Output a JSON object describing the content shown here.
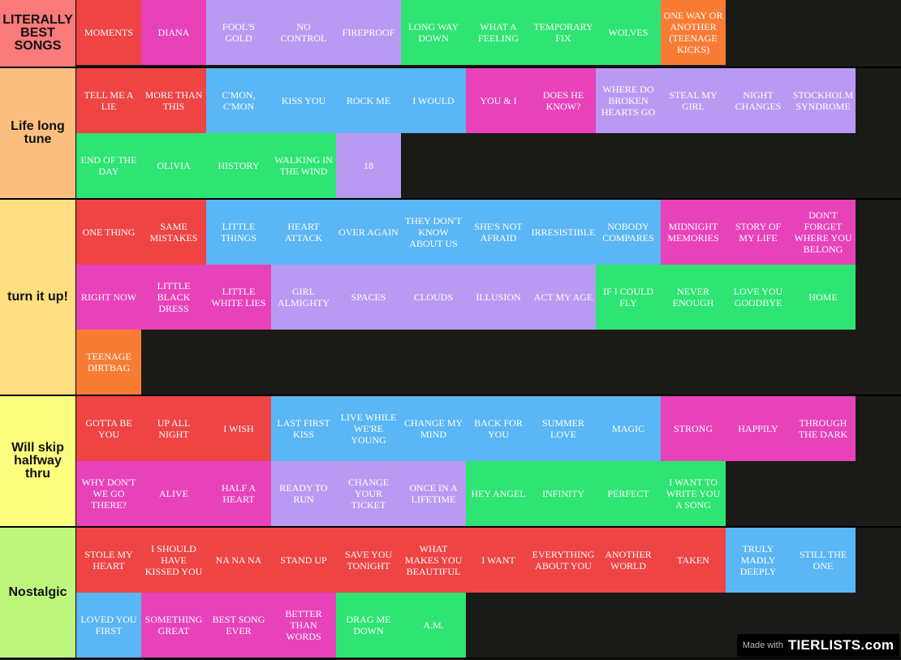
{
  "colors": {
    "red": "#ef4444",
    "pink": "#e842ba",
    "lavender": "#b99af2",
    "green": "#2ee472",
    "orange": "#f97c35",
    "blue": "#5ab6f4"
  },
  "tiers": [
    {
      "label": "LITERALLY BEST SONGS",
      "color": "#fb7a7a",
      "height": 82,
      "items": [
        {
          "text": "MOMENTS",
          "color": "red"
        },
        {
          "text": "DIANA",
          "color": "pink"
        },
        {
          "text": "FOOL'S GOLD",
          "color": "lavender"
        },
        {
          "text": "NO CONTROL",
          "color": "lavender"
        },
        {
          "text": "FIREPROOF",
          "color": "lavender"
        },
        {
          "text": "LONG WAY DOWN",
          "color": "green"
        },
        {
          "text": "WHAT A FEELING",
          "color": "green"
        },
        {
          "text": "TEMPORARY FIX",
          "color": "green"
        },
        {
          "text": "WOLVES",
          "color": "green"
        },
        {
          "text": "ONE WAY OR ANOTHER (TEENAGE KICKS)",
          "color": "orange"
        }
      ]
    },
    {
      "label": "Life long tune",
      "color": "#fdbf80",
      "height": 162,
      "items": [
        {
          "text": "TELL ME A LIE",
          "color": "red"
        },
        {
          "text": "MORE THAN THIS",
          "color": "red"
        },
        {
          "text": "C'MON, C'MON",
          "color": "blue"
        },
        {
          "text": "KISS YOU",
          "color": "blue"
        },
        {
          "text": "ROCK ME",
          "color": "blue"
        },
        {
          "text": "I WOULD",
          "color": "blue"
        },
        {
          "text": "YOU & I",
          "color": "pink"
        },
        {
          "text": "DOES HE KNOW?",
          "color": "pink"
        },
        {
          "text": "WHERE DO BROKEN HEARTS GO",
          "color": "lavender"
        },
        {
          "text": "STEAL MY GIRL",
          "color": "lavender"
        },
        {
          "text": "NIGHT CHANGES",
          "color": "lavender"
        },
        {
          "text": "STOCKHOLM SYNDROME",
          "color": "lavender"
        },
        {
          "text": "END OF THE DAY",
          "color": "green"
        },
        {
          "text": "OLIVIA",
          "color": "green"
        },
        {
          "text": "HISTORY",
          "color": "green"
        },
        {
          "text": "WALKING IN THE WIND",
          "color": "green"
        },
        {
          "text": "18",
          "color": "lavender"
        }
      ]
    },
    {
      "label": "turn it up!",
      "color": "#fdde80",
      "height": 242,
      "items": [
        {
          "text": "ONE THING",
          "color": "red"
        },
        {
          "text": "SAME MISTAKES",
          "color": "red"
        },
        {
          "text": "LITTLE THINGS",
          "color": "blue"
        },
        {
          "text": "HEART ATTACK",
          "color": "blue"
        },
        {
          "text": "OVER AGAIN",
          "color": "blue"
        },
        {
          "text": "THEY DON'T KNOW ABOUT US",
          "color": "blue"
        },
        {
          "text": "SHE'S NOT AFRAID",
          "color": "blue"
        },
        {
          "text": "IRRESISTIBLE",
          "color": "blue"
        },
        {
          "text": "NOBODY COMPARES",
          "color": "blue"
        },
        {
          "text": "MIDNIGHT MEMORIES",
          "color": "pink"
        },
        {
          "text": "STORY OF MY LIFE",
          "color": "pink"
        },
        {
          "text": "DON'T FORGET WHERE YOU BELONG",
          "color": "pink"
        },
        {
          "text": "RIGHT NOW",
          "color": "pink"
        },
        {
          "text": "LITTLE BLACK DRESS",
          "color": "pink"
        },
        {
          "text": "LITTLE WHITE LIES",
          "color": "pink"
        },
        {
          "text": "GIRL ALMIGHTY",
          "color": "lavender"
        },
        {
          "text": "SPACES",
          "color": "lavender"
        },
        {
          "text": "CLOUDS",
          "color": "lavender"
        },
        {
          "text": "ILLUSION",
          "color": "lavender"
        },
        {
          "text": "ACT MY AGE",
          "color": "lavender"
        },
        {
          "text": "IF I COULD FLY",
          "color": "green"
        },
        {
          "text": "NEVER ENOUGH",
          "color": "green"
        },
        {
          "text": "LOVE YOU GOODBYE",
          "color": "green"
        },
        {
          "text": "HOME",
          "color": "green"
        },
        {
          "text": "TEENAGE DIRTBAG",
          "color": "orange"
        }
      ]
    },
    {
      "label": "Will skip halfway thru",
      "color": "#fdfd7f",
      "height": 162,
      "items": [
        {
          "text": "GOTTA BE YOU",
          "color": "red"
        },
        {
          "text": "UP ALL NIGHT",
          "color": "red"
        },
        {
          "text": "I WISH",
          "color": "red"
        },
        {
          "text": "LAST FIRST KISS",
          "color": "blue"
        },
        {
          "text": "LIVE WHILE WE'RE YOUNG",
          "color": "blue"
        },
        {
          "text": "CHANGE MY MIND",
          "color": "blue"
        },
        {
          "text": "BACK FOR YOU",
          "color": "blue"
        },
        {
          "text": "SUMMER LOVE",
          "color": "blue"
        },
        {
          "text": "MAGIC",
          "color": "blue"
        },
        {
          "text": "STRONG",
          "color": "pink"
        },
        {
          "text": "HAPPILY",
          "color": "pink"
        },
        {
          "text": "THROUGH THE DARK",
          "color": "pink"
        },
        {
          "text": "WHY DON'T WE GO THERE?",
          "color": "pink"
        },
        {
          "text": "ALIVE",
          "color": "pink"
        },
        {
          "text": "HALF A HEART",
          "color": "pink"
        },
        {
          "text": "READY TO RUN",
          "color": "lavender"
        },
        {
          "text": "CHANGE YOUR TICKET",
          "color": "lavender"
        },
        {
          "text": "ONCE IN A LIFETIME",
          "color": "lavender"
        },
        {
          "text": "HEY ANGEL",
          "color": "green"
        },
        {
          "text": "INFINITY",
          "color": "green"
        },
        {
          "text": "PERFECT",
          "color": "green"
        },
        {
          "text": "I WANT TO WRITE YOU A SONG",
          "color": "green"
        }
      ]
    },
    {
      "label": "Nostalgic",
      "color": "#bff77e",
      "height": 162,
      "items": [
        {
          "text": "STOLE MY HEART",
          "color": "red"
        },
        {
          "text": "I SHOULD HAVE KISSED YOU",
          "color": "red"
        },
        {
          "text": "NA NA NA",
          "color": "red"
        },
        {
          "text": "STAND UP",
          "color": "red"
        },
        {
          "text": "SAVE YOU TONIGHT",
          "color": "red"
        },
        {
          "text": "WHAT MAKES YOU BEAUTIFUL",
          "color": "red"
        },
        {
          "text": "I WANT",
          "color": "red"
        },
        {
          "text": "EVERYTHING ABOUT YOU",
          "color": "red"
        },
        {
          "text": "ANOTHER WORLD",
          "color": "red"
        },
        {
          "text": "TAKEN",
          "color": "red"
        },
        {
          "text": "TRULY MADLY DEEPLY",
          "color": "blue"
        },
        {
          "text": "STILL THE ONE",
          "color": "blue"
        },
        {
          "text": "LOVED YOU FIRST",
          "color": "blue"
        },
        {
          "text": "SOMETHING GREAT",
          "color": "pink"
        },
        {
          "text": "BEST SONG EVER",
          "color": "pink"
        },
        {
          "text": "BETTER THAN WORDS",
          "color": "pink"
        },
        {
          "text": "DRAG ME DOWN",
          "color": "green"
        },
        {
          "text": "A.M.",
          "color": "green"
        }
      ]
    }
  ],
  "footer": {
    "made_with": "Made with",
    "brand": "TIERLISTS.com"
  }
}
